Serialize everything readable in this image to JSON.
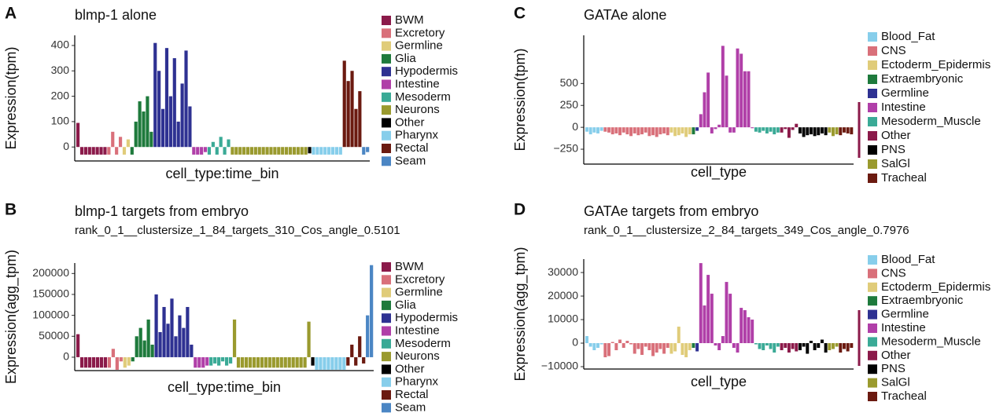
{
  "chart_data": [
    {
      "type": "bar",
      "panel": "A",
      "title": "blmp-1 alone",
      "x_label": "cell_type:time_bin",
      "y_label": "Expression(tpm)",
      "ylim": [
        -55,
        440
      ],
      "yticks": [
        0,
        100,
        200,
        300,
        400
      ],
      "series": [
        {
          "name": "BWM",
          "color": "#8b1a4a",
          "values": [
            95,
            -30,
            -30,
            -30,
            -30,
            -30,
            -30,
            -30
          ]
        },
        {
          "name": "Excretory",
          "color": "#d9707a",
          "values": [
            -30,
            60,
            -30,
            40
          ]
        },
        {
          "name": "Germline",
          "color": "#e0cc7a",
          "values": [
            -30,
            30
          ]
        },
        {
          "name": "Glia",
          "color": "#1e7a3c",
          "values": [
            -30,
            100,
            180,
            140,
            200,
            60
          ]
        },
        {
          "name": "Hypodermis",
          "color": "#2e3192",
          "values": [
            410,
            300,
            150,
            390,
            200,
            350,
            100,
            250,
            380,
            160
          ]
        },
        {
          "name": "Intestine",
          "color": "#b03fa8",
          "values": [
            -30,
            -30,
            -30,
            -20
          ]
        },
        {
          "name": "Mesoderm",
          "color": "#3aaa96",
          "values": [
            -30,
            20,
            -30,
            40,
            -30,
            30
          ]
        },
        {
          "name": "Neurons",
          "color": "#9a9a2e",
          "values": [
            -30,
            -30,
            -30,
            -30,
            -30,
            -30,
            -30,
            -30,
            -30,
            -30,
            -30,
            -30,
            -30,
            -30,
            -30,
            -30,
            -30,
            -30,
            -30,
            -30
          ]
        },
        {
          "name": "Other",
          "color": "#000000",
          "values": [
            -25
          ]
        },
        {
          "name": "Pharynx",
          "color": "#87ceeb",
          "values": [
            -30,
            -30,
            -30,
            -30,
            -30,
            -30,
            -30,
            -30
          ]
        },
        {
          "name": "Rectal",
          "color": "#6b1a10",
          "values": [
            340,
            260,
            300,
            150,
            220
          ]
        },
        {
          "name": "Seam",
          "color": "#4b86c4",
          "values": [
            -30,
            -20
          ]
        }
      ]
    },
    {
      "type": "bar",
      "panel": "B",
      "title": "blmp-1 targets from embryo",
      "subtitle": "rank_0_1__clustersize_1_84_targets_310_Cos_angle_0.5101",
      "x_label": "cell_type:time_bin",
      "y_label": "Expression(agg_tpm)",
      "ylim": [
        -32000,
        225000
      ],
      "yticks": [
        0,
        50000,
        100000,
        150000,
        200000
      ],
      "series": [
        {
          "name": "BWM",
          "color": "#8b1a4a",
          "values": [
            55000,
            -25000,
            -25000,
            -25000,
            -25000,
            -25000,
            -25000,
            -25000
          ]
        },
        {
          "name": "Excretory",
          "color": "#d9707a",
          "values": [
            -25000,
            20000,
            -30000,
            -10000
          ]
        },
        {
          "name": "Germline",
          "color": "#e0cc7a",
          "values": [
            -25000,
            -20000
          ]
        },
        {
          "name": "Glia",
          "color": "#1e7a3c",
          "values": [
            -10000,
            50000,
            70000,
            40000,
            90000,
            30000
          ]
        },
        {
          "name": "Hypodermis",
          "color": "#2e3192",
          "values": [
            150000,
            60000,
            120000,
            80000,
            140000,
            50000,
            100000,
            70000,
            120000,
            30000
          ]
        },
        {
          "name": "Intestine",
          "color": "#b03fa8",
          "values": [
            -25000,
            -25000,
            -25000,
            -20000
          ]
        },
        {
          "name": "Mesoderm",
          "color": "#3aaa96",
          "values": [
            -20000,
            -15000,
            -20000,
            -10000,
            -20000,
            -15000
          ]
        },
        {
          "name": "Neurons",
          "color": "#9a9a2e",
          "values": [
            90000,
            -25000,
            -25000,
            -25000,
            -25000,
            -25000,
            -25000,
            -25000,
            -25000,
            -25000,
            -25000,
            -25000,
            -25000,
            -25000,
            -25000,
            -25000,
            -25000,
            -25000,
            -25000,
            85000
          ]
        },
        {
          "name": "Other",
          "color": "#000000",
          "values": [
            -20000
          ]
        },
        {
          "name": "Pharynx",
          "color": "#87ceeb",
          "values": [
            -30000,
            -30000,
            -30000,
            -30000,
            -30000,
            -30000,
            -30000,
            -30000
          ]
        },
        {
          "name": "Rectal",
          "color": "#6b1a10",
          "values": [
            -20000,
            30000,
            -20000,
            50000,
            -15000
          ]
        },
        {
          "name": "Seam",
          "color": "#4b86c4",
          "values": [
            100000,
            220000
          ]
        }
      ]
    },
    {
      "type": "bar",
      "panel": "C",
      "title": "GATAe alone",
      "x_label": "cell_type",
      "y_label": "Expression(tpm)",
      "ylim": [
        -420,
        1050
      ],
      "yticks": [
        {
          "value": -250,
          "label": "−250"
        },
        0,
        250,
        500
      ],
      "series": [
        {
          "name": "Blood_Fat",
          "color": "#87ceeb",
          "values": [
            -50,
            -80,
            -60,
            -70,
            -40
          ]
        },
        {
          "name": "CNS",
          "color": "#d9707a",
          "values": [
            -50,
            -60,
            -80,
            -70,
            -90,
            -60,
            -80,
            -100,
            -70,
            -90,
            -80,
            -60,
            -100,
            -90,
            -110,
            -80,
            -70,
            -90
          ]
        },
        {
          "name": "Ectoderm_Epidermis",
          "color": "#e0cc7a",
          "values": [
            -60,
            -100,
            -90,
            -70,
            -110,
            -80
          ]
        },
        {
          "name": "Extraembryonic",
          "color": "#1e7a3c",
          "values": [
            -80
          ]
        },
        {
          "name": "Germline",
          "color": "#2e3192",
          "values": [
            -40
          ]
        },
        {
          "name": "Intestine",
          "color": "#b03fa8",
          "values": [
            150,
            400,
            625,
            -70,
            -20,
            30,
            930,
            590,
            -60,
            -60,
            900,
            840,
            640,
            640,
            -10
          ]
        },
        {
          "name": "Mesoderm_Muscle",
          "color": "#3aaa96",
          "values": [
            -50,
            -60,
            -40,
            -70,
            -50,
            -80,
            -60
          ]
        },
        {
          "name": "Other",
          "color": "#8b1a4a",
          "values": [
            -60,
            -20,
            -120,
            -30,
            40
          ]
        },
        {
          "name": "PNS",
          "color": "#000000",
          "values": [
            -70,
            -110,
            -90,
            -80,
            -100,
            -90,
            -70,
            -90
          ]
        },
        {
          "name": "SalGl",
          "color": "#9a9a2e",
          "values": [
            -60,
            -100,
            -80
          ]
        },
        {
          "name": "Tracheal",
          "color": "#6b1a10",
          "values": [
            -90,
            -60,
            -70,
            -80
          ]
        }
      ]
    },
    {
      "type": "bar",
      "panel": "D",
      "title": "GATAe targets from embryo",
      "subtitle": "rank_0_1__clustersize_2_84_targets_349_Cos_angle_0.7976",
      "x_label": "cell_type",
      "y_label": "Expression(agg_tpm)",
      "ylim": [
        -11000,
        35700
      ],
      "yticks": [
        {
          "value": -10000,
          "label": "−10000"
        },
        0,
        10000,
        20000,
        30000
      ],
      "series": [
        {
          "name": "Blood_Fat",
          "color": "#87ceeb",
          "values": [
            3000,
            -1500,
            -3000,
            -2000,
            -500
          ]
        },
        {
          "name": "CNS",
          "color": "#d9707a",
          "values": [
            -6000,
            -5500,
            500,
            -3000,
            1500,
            -2000,
            1000,
            -500,
            -4500,
            -2500,
            -5000,
            -1500,
            -3000,
            -5500,
            -4000,
            -2500,
            -4500,
            -2000
          ]
        },
        {
          "name": "Ectoderm_Epidermis",
          "color": "#e0cc7a",
          "values": [
            -4500,
            -3500,
            7000,
            -5000,
            -6000,
            -3000
          ]
        },
        {
          "name": "Extraembryonic",
          "color": "#1e7a3c",
          "values": [
            -2000
          ]
        },
        {
          "name": "Germline",
          "color": "#2e3192",
          "values": [
            -3500
          ]
        },
        {
          "name": "Intestine",
          "color": "#b03fa8",
          "values": [
            34000,
            16000,
            29000,
            21000,
            -1000,
            -3000,
            3000,
            26000,
            21000,
            -2000,
            -4000,
            15000,
            14000,
            11000,
            10000
          ]
        },
        {
          "name": "Mesoderm_Muscle",
          "color": "#3aaa96",
          "values": [
            -500,
            -2500,
            -3000,
            -1000,
            -2500,
            -4000,
            -1500
          ]
        },
        {
          "name": "Other",
          "color": "#8b1a4a",
          "values": [
            -3000,
            -2000,
            -4000,
            -2500,
            -3500
          ]
        },
        {
          "name": "PNS",
          "color": "#000000",
          "values": [
            -3000,
            -1500,
            -4500,
            1000,
            -3000,
            -2000,
            1500,
            -4000
          ]
        },
        {
          "name": "SalGl",
          "color": "#9a9a2e",
          "values": [
            -3000,
            -2500,
            -1500
          ]
        },
        {
          "name": "Tracheal",
          "color": "#6b1a10",
          "values": [
            -4000,
            -2500,
            -3500,
            -2000
          ]
        }
      ]
    }
  ]
}
